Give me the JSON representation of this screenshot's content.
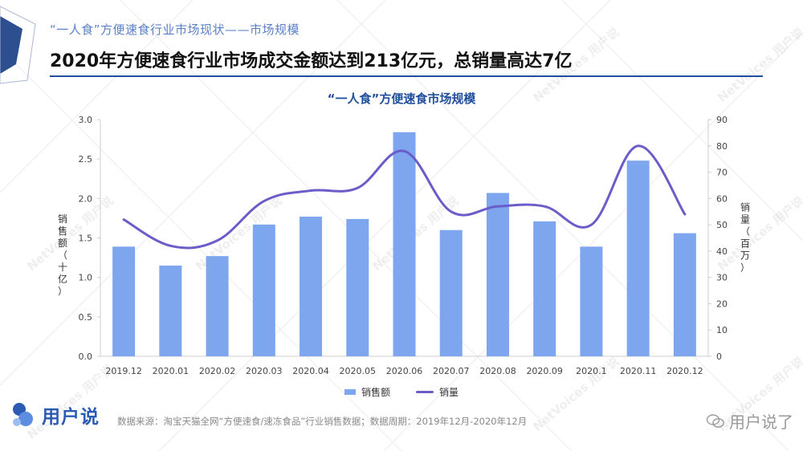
{
  "header": {
    "subtitle": "“一人食”方便速食行业市场现状——市场规模",
    "title": "2020年方便速食行业市场成交金额达到213亿元，总销量高达7亿"
  },
  "chart_data": {
    "type": "bar",
    "title": "“一人食”方便速食市场规模",
    "categories": [
      "2019.12",
      "2020.01",
      "2020.02",
      "2020.03",
      "2020.04",
      "2020.05",
      "2020.06",
      "2020.07",
      "2020.08",
      "2020.09",
      "2020.1",
      "2020.11",
      "2020.12"
    ],
    "y_left": {
      "label": "销售额（十亿）",
      "ylim": [
        0,
        3.0
      ],
      "ticks": [
        "0.0",
        "0.5",
        "1.0",
        "1.5",
        "2.0",
        "2.5",
        "3.0"
      ]
    },
    "y_right": {
      "label": "销量（百万）",
      "ylim": [
        0,
        90
      ],
      "ticks": [
        "0",
        "10",
        "20",
        "30",
        "40",
        "50",
        "60",
        "70",
        "80",
        "90"
      ]
    },
    "series": [
      {
        "name": "销售额",
        "type": "bar",
        "axis": "left",
        "color": "#7ea6ee",
        "values": [
          1.39,
          1.15,
          1.27,
          1.67,
          1.77,
          1.74,
          2.84,
          1.6,
          2.07,
          1.71,
          1.39,
          2.48,
          1.56
        ]
      },
      {
        "name": "销量",
        "type": "line",
        "axis": "right",
        "color": "#6a5cc9",
        "values": [
          52,
          42,
          44,
          59,
          63,
          64,
          78,
          55,
          57,
          57,
          50,
          80,
          54
        ]
      }
    ],
    "grid": true,
    "legend": "bottom-center"
  },
  "footer": {
    "logo_text": "用户说",
    "source": "数据来源：淘宝天猫全网“方便速食/速冻食品”行业销售数据；数据周期：2019年12月-2020年12月",
    "wechat_label": "用户说了"
  },
  "watermark": "NetVoices 用户说"
}
